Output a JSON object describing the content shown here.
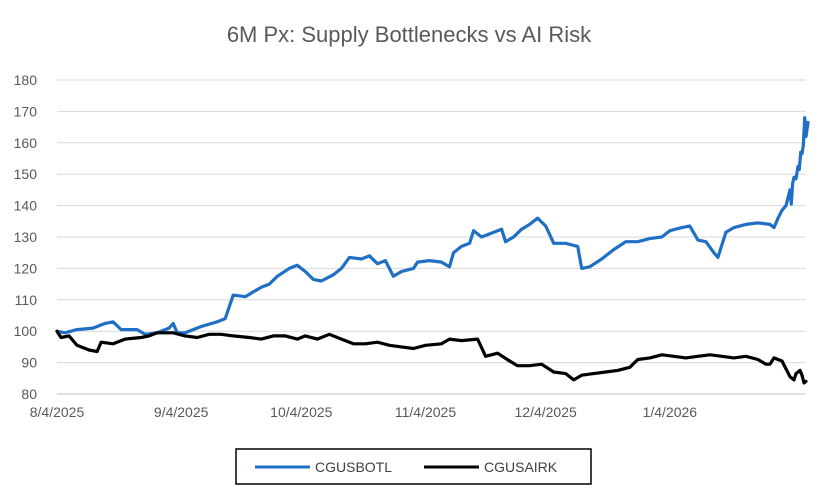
{
  "chart_data": {
    "type": "line",
    "title": "6M Px: Supply Bottlenecks vs AI Risk",
    "xlabel": "",
    "ylabel": "",
    "ylim": [
      80,
      180
    ],
    "yticks": [
      "80",
      "90",
      "100",
      "110",
      "120",
      "130",
      "140",
      "150",
      "160",
      "170",
      "180"
    ],
    "xlim": [
      "2025-08-04",
      "2026-02-07"
    ],
    "xticks": [
      {
        "date": "2025-08-04",
        "label": "8/4/2025"
      },
      {
        "date": "2025-09-04",
        "label": "9/4/2025"
      },
      {
        "date": "2025-10-04",
        "label": "10/4/2025"
      },
      {
        "date": "2025-11-04",
        "label": "11/4/2025"
      },
      {
        "date": "2025-12-04",
        "label": "12/4/2025"
      },
      {
        "date": "2026-01-04",
        "label": "1/4/2026"
      }
    ],
    "grid": true,
    "legend_position": "bottom",
    "series": [
      {
        "name": "CGUSBOTL",
        "color": "#1f6fc5",
        "points": [
          [
            "2025-08-04",
            100
          ],
          [
            "2025-08-06",
            99.5
          ],
          [
            "2025-08-09",
            100.5
          ],
          [
            "2025-08-13",
            101
          ],
          [
            "2025-08-16",
            102.5
          ],
          [
            "2025-08-18",
            103
          ],
          [
            "2025-08-20",
            100.5
          ],
          [
            "2025-08-24",
            100.5
          ],
          [
            "2025-08-26",
            99
          ],
          [
            "2025-08-29",
            99.5
          ],
          [
            "2025-09-01",
            101
          ],
          [
            "2025-09-02",
            102.5
          ],
          [
            "2025-09-03",
            99.5
          ],
          [
            "2025-09-05",
            99.5
          ],
          [
            "2025-09-09",
            101.5
          ],
          [
            "2025-09-13",
            103
          ],
          [
            "2025-09-15",
            104
          ],
          [
            "2025-09-17",
            111.5
          ],
          [
            "2025-09-20",
            111
          ],
          [
            "2025-09-22",
            112.5
          ],
          [
            "2025-09-24",
            114
          ],
          [
            "2025-09-26",
            115
          ],
          [
            "2025-09-28",
            117.5
          ],
          [
            "2025-10-01",
            120
          ],
          [
            "2025-10-03",
            121
          ],
          [
            "2025-10-05",
            119
          ],
          [
            "2025-10-07",
            116.5
          ],
          [
            "2025-10-09",
            116
          ],
          [
            "2025-10-12",
            118
          ],
          [
            "2025-10-14",
            120
          ],
          [
            "2025-10-16",
            123.5
          ],
          [
            "2025-10-19",
            123
          ],
          [
            "2025-10-21",
            124
          ],
          [
            "2025-10-23",
            121.5
          ],
          [
            "2025-10-25",
            122.5
          ],
          [
            "2025-10-27",
            117.5
          ],
          [
            "2025-10-29",
            119
          ],
          [
            "2025-11-01",
            120
          ],
          [
            "2025-11-02",
            122
          ],
          [
            "2025-11-05",
            122.5
          ],
          [
            "2025-11-08",
            122
          ],
          [
            "2025-11-10",
            120.5
          ],
          [
            "2025-11-11",
            125
          ],
          [
            "2025-11-13",
            127
          ],
          [
            "2025-11-15",
            128
          ],
          [
            "2025-11-16",
            132
          ],
          [
            "2025-11-18",
            130
          ],
          [
            "2025-11-20",
            131
          ],
          [
            "2025-11-23",
            132.5
          ],
          [
            "2025-11-24",
            128.5
          ],
          [
            "2025-11-26",
            130
          ],
          [
            "2025-11-28",
            132.5
          ],
          [
            "2025-11-30",
            134
          ],
          [
            "2025-12-02",
            136
          ],
          [
            "2025-12-04",
            133.5
          ],
          [
            "2025-12-06",
            128
          ],
          [
            "2025-12-09",
            128
          ],
          [
            "2025-12-12",
            127
          ],
          [
            "2025-12-13",
            120
          ],
          [
            "2025-12-15",
            120.5
          ],
          [
            "2025-12-18",
            123
          ],
          [
            "2025-12-21",
            126
          ],
          [
            "2025-12-24",
            128.5
          ],
          [
            "2025-12-27",
            128.5
          ],
          [
            "2025-12-30",
            129.5
          ],
          [
            "2026-01-02",
            130
          ],
          [
            "2026-01-04",
            132
          ],
          [
            "2026-01-07",
            133
          ],
          [
            "2026-01-09",
            133.5
          ],
          [
            "2026-01-11",
            129
          ],
          [
            "2026-01-13",
            128.5
          ],
          [
            "2026-01-15",
            125
          ],
          [
            "2026-01-16",
            123.5
          ],
          [
            "2026-01-18",
            131.5
          ],
          [
            "2026-01-20",
            133
          ],
          [
            "2026-01-23",
            134
          ],
          [
            "2026-01-26",
            134.5
          ],
          [
            "2026-01-29",
            134
          ],
          [
            "2026-01-30",
            133
          ],
          [
            "2026-01-31",
            136
          ],
          [
            "2026-02-01",
            138.5
          ],
          [
            "2026-02-02",
            140
          ],
          [
            "2026-02-03",
            145
          ],
          [
            "2026-02-03",
            140.5
          ],
          [
            "2026-02-03",
            147
          ],
          [
            "2026-02-04",
            149
          ],
          [
            "2026-02-04",
            148.5
          ],
          [
            "2026-02-05",
            152.5
          ],
          [
            "2026-02-05",
            151.5
          ],
          [
            "2026-02-05",
            157
          ],
          [
            "2026-02-06",
            156.5
          ],
          [
            "2026-02-06",
            159
          ],
          [
            "2026-02-06",
            168
          ],
          [
            "2026-02-07",
            162
          ],
          [
            "2026-02-07",
            166.5
          ]
        ]
      },
      {
        "name": "CGUSAIRK",
        "color": "#000000",
        "points": [
          [
            "2025-08-04",
            100
          ],
          [
            "2025-08-05",
            98
          ],
          [
            "2025-08-07",
            98.5
          ],
          [
            "2025-08-09",
            95.5
          ],
          [
            "2025-08-12",
            94
          ],
          [
            "2025-08-14",
            93.5
          ],
          [
            "2025-08-15",
            96.5
          ],
          [
            "2025-08-18",
            96
          ],
          [
            "2025-08-21",
            97.5
          ],
          [
            "2025-08-25",
            98
          ],
          [
            "2025-08-27",
            98.5
          ],
          [
            "2025-08-29",
            99.5
          ],
          [
            "2025-09-02",
            99.5
          ],
          [
            "2025-09-05",
            98.5
          ],
          [
            "2025-09-08",
            98
          ],
          [
            "2025-09-11",
            99
          ],
          [
            "2025-09-14",
            99
          ],
          [
            "2025-09-17",
            98.5
          ],
          [
            "2025-09-21",
            98
          ],
          [
            "2025-09-24",
            97.5
          ],
          [
            "2025-09-27",
            98.5
          ],
          [
            "2025-09-30",
            98.5
          ],
          [
            "2025-10-03",
            97.5
          ],
          [
            "2025-10-05",
            98.5
          ],
          [
            "2025-10-08",
            97.5
          ],
          [
            "2025-10-11",
            99
          ],
          [
            "2025-10-14",
            97.5
          ],
          [
            "2025-10-17",
            96
          ],
          [
            "2025-10-20",
            96
          ],
          [
            "2025-10-23",
            96.5
          ],
          [
            "2025-10-26",
            95.5
          ],
          [
            "2025-10-29",
            95
          ],
          [
            "2025-11-01",
            94.5
          ],
          [
            "2025-11-04",
            95.5
          ],
          [
            "2025-11-08",
            96
          ],
          [
            "2025-11-10",
            97.5
          ],
          [
            "2025-11-13",
            97
          ],
          [
            "2025-11-17",
            97.5
          ],
          [
            "2025-11-19",
            92
          ],
          [
            "2025-11-22",
            93
          ],
          [
            "2025-11-25",
            90.5
          ],
          [
            "2025-11-27",
            89
          ],
          [
            "2025-11-30",
            89
          ],
          [
            "2025-12-03",
            89.5
          ],
          [
            "2025-12-06",
            87
          ],
          [
            "2025-12-09",
            86.5
          ],
          [
            "2025-12-11",
            84.5
          ],
          [
            "2025-12-13",
            86
          ],
          [
            "2025-12-16",
            86.5
          ],
          [
            "2025-12-19",
            87
          ],
          [
            "2025-12-22",
            87.5
          ],
          [
            "2025-12-25",
            88.5
          ],
          [
            "2025-12-27",
            91
          ],
          [
            "2025-12-30",
            91.5
          ],
          [
            "2026-01-02",
            92.5
          ],
          [
            "2026-01-05",
            92
          ],
          [
            "2026-01-08",
            91.5
          ],
          [
            "2026-01-11",
            92
          ],
          [
            "2026-01-14",
            92.5
          ],
          [
            "2026-01-17",
            92
          ],
          [
            "2026-01-20",
            91.5
          ],
          [
            "2026-01-23",
            92
          ],
          [
            "2026-01-26",
            91
          ],
          [
            "2026-01-28",
            89.5
          ],
          [
            "2026-01-29",
            89.5
          ],
          [
            "2026-01-30",
            91.5
          ],
          [
            "2026-01-31",
            91
          ],
          [
            "2026-02-01",
            90.5
          ],
          [
            "2026-02-02",
            88
          ],
          [
            "2026-02-03",
            85.5
          ],
          [
            "2026-02-04",
            84.5
          ],
          [
            "2026-02-04",
            86.5
          ],
          [
            "2026-02-05",
            87
          ],
          [
            "2026-02-05",
            87.5
          ],
          [
            "2026-02-06",
            86
          ],
          [
            "2026-02-06",
            83.5
          ],
          [
            "2026-02-07",
            84
          ]
        ]
      }
    ]
  }
}
